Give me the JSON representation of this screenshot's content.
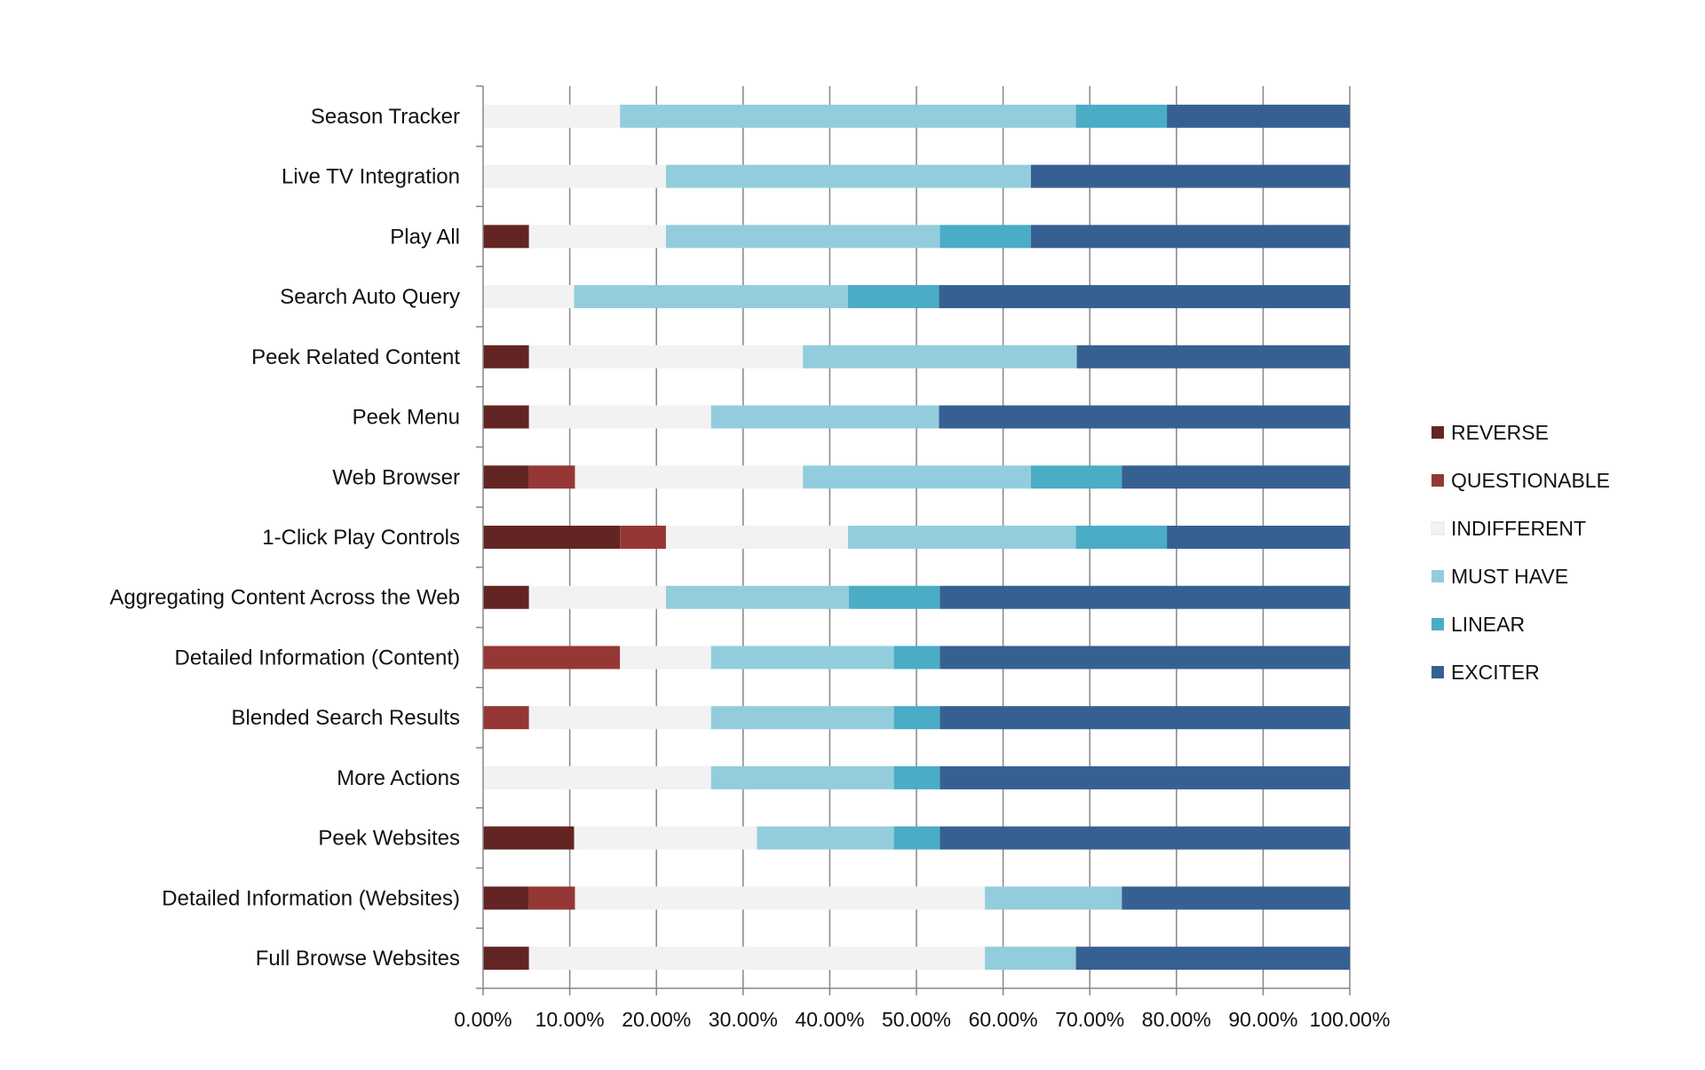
{
  "chart_data": {
    "type": "bar",
    "orientation": "horizontal",
    "stacked": true,
    "percent_stacked": true,
    "title": "",
    "xlabel": "",
    "ylabel": "",
    "xlim": [
      0,
      1
    ],
    "x_tick_labels": [
      "0.00%",
      "10.00%",
      "20.00%",
      "30.00%",
      "40.00%",
      "50.00%",
      "60.00%",
      "70.00%",
      "80.00%",
      "90.00%",
      "100.00%"
    ],
    "grid": true,
    "legend_position": "right",
    "categories": [
      "Season Tracker",
      "Live TV Integration",
      "Play All",
      "Search Auto Query",
      "Peek Related Content",
      "Peek Menu",
      "Web Browser",
      "1-Click Play Controls",
      "Aggregating Content Across the Web",
      "Detailed Information (Content)",
      "Blended Search Results",
      "More Actions",
      "Peek Websites",
      "Detailed Information (Websites)",
      "Full Browse Websites"
    ],
    "series": [
      {
        "name": "REVERSE",
        "color": "#632523",
        "values": [
          0,
          0,
          0.053,
          0,
          0.053,
          0.053,
          0.053,
          0.158,
          0.053,
          0,
          0,
          0,
          0.105,
          0.053,
          0.053
        ]
      },
      {
        "name": "QUESTIONABLE",
        "color": "#953735",
        "values": [
          0,
          0,
          0,
          0,
          0,
          0,
          0.053,
          0.053,
          0,
          0.158,
          0.053,
          0,
          0,
          0.053,
          0
        ]
      },
      {
        "name": "INDIFFERENT",
        "color": "#f2f2f2",
        "values": [
          0.158,
          0.211,
          0.158,
          0.105,
          0.316,
          0.21,
          0.263,
          0.21,
          0.158,
          0.105,
          0.21,
          0.263,
          0.211,
          0.473,
          0.526
        ]
      },
      {
        "name": "MUST HAVE",
        "color": "#93cddd",
        "values": [
          0.526,
          0.421,
          0.316,
          0.316,
          0.316,
          0.263,
          0.263,
          0.263,
          0.211,
          0.211,
          0.211,
          0.211,
          0.158,
          0.158,
          0.105
        ]
      },
      {
        "name": "LINEAR",
        "color": "#4bacc6",
        "values": [
          0.105,
          0,
          0.105,
          0.105,
          0,
          0,
          0.105,
          0.105,
          0.105,
          0.053,
          0.053,
          0.053,
          0.053,
          0,
          0
        ]
      },
      {
        "name": "EXCITER",
        "color": "#376092",
        "values": [
          0.211,
          0.368,
          0.368,
          0.474,
          0.315,
          0.474,
          0.263,
          0.211,
          0.473,
          0.473,
          0.473,
          0.473,
          0.473,
          0.263,
          0.316
        ]
      }
    ]
  }
}
